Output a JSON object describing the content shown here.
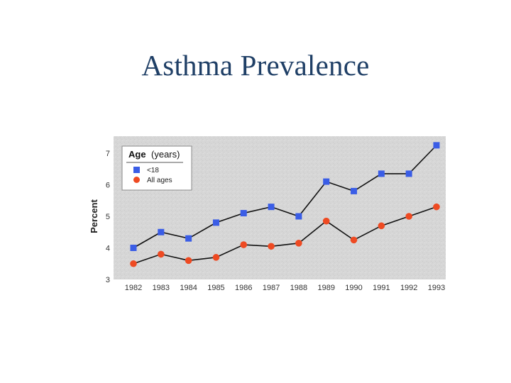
{
  "slide": {
    "title": "Asthma Prevalence"
  },
  "chart_data": {
    "type": "line",
    "title": "",
    "xlabel": "",
    "ylabel": "Percent",
    "x": [
      "1982",
      "1983",
      "1984",
      "1985",
      "1986",
      "1987",
      "1988",
      "1989",
      "1990",
      "1991",
      "1992",
      "1993"
    ],
    "ylim": [
      3,
      7.5
    ],
    "yticks": [
      "3",
      "4",
      "5",
      "6",
      "7"
    ],
    "grid": false,
    "legend": {
      "title_bold": "Age",
      "title_rest": "(years)",
      "placement": "top-left"
    },
    "series": [
      {
        "name": "<18",
        "marker": "square",
        "color": "#3a5de6",
        "values": [
          4.0,
          4.5,
          4.3,
          4.8,
          5.1,
          5.3,
          5.0,
          6.1,
          5.8,
          6.35,
          6.35,
          7.25
        ]
      },
      {
        "name": "All ages",
        "marker": "circle",
        "color": "#ee4a22",
        "values": [
          3.5,
          3.8,
          3.6,
          3.7,
          4.1,
          4.05,
          4.15,
          4.85,
          4.25,
          4.7,
          5.0,
          5.3
        ]
      }
    ],
    "colors": {
      "plot_background": "#d8d8d8",
      "line": "#111111"
    }
  }
}
